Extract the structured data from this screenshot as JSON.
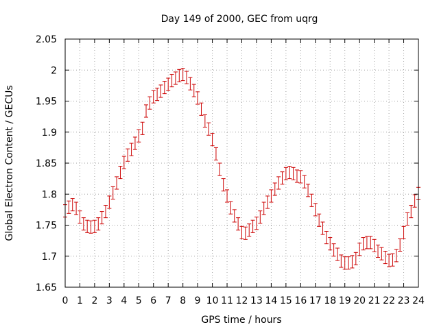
{
  "chart_data": {
    "type": "scatter",
    "title": "Day 149 of 2000, GEC from uqrg",
    "xlabel": "GPS time / hours",
    "ylabel": "Global Electron Content / GECUs",
    "xlim": [
      0,
      24
    ],
    "ylim": [
      1.65,
      2.05
    ],
    "xticks": [
      0,
      1,
      2,
      3,
      4,
      5,
      6,
      7,
      8,
      9,
      10,
      11,
      12,
      13,
      14,
      15,
      16,
      17,
      18,
      19,
      20,
      21,
      22,
      23,
      24
    ],
    "yticks": [
      1.65,
      1.7,
      1.75,
      1.8,
      1.85,
      1.9,
      1.95,
      2,
      2.05
    ],
    "ytick_labels": [
      "1.65",
      "1.7",
      "1.75",
      "1.8",
      "1.85",
      "1.9",
      "1.95",
      "2",
      "2.05"
    ],
    "grid": true,
    "marker": "errorbar",
    "series": [
      {
        "color": "#cc0000",
        "error": 0.01,
        "x": [
          0,
          0.25,
          0.5,
          0.75,
          1,
          1.25,
          1.5,
          1.75,
          2,
          2.25,
          2.5,
          2.75,
          3,
          3.25,
          3.5,
          3.75,
          4,
          4.25,
          4.5,
          4.75,
          5,
          5.25,
          5.5,
          5.75,
          6,
          6.25,
          6.5,
          6.75,
          7,
          7.25,
          7.5,
          7.75,
          8,
          8.25,
          8.5,
          8.75,
          9,
          9.25,
          9.5,
          9.75,
          10,
          10.25,
          10.5,
          10.75,
          11,
          11.25,
          11.5,
          11.75,
          12,
          12.25,
          12.5,
          12.75,
          13,
          13.25,
          13.5,
          13.75,
          14,
          14.25,
          14.5,
          14.75,
          15,
          15.25,
          15.5,
          15.75,
          16,
          16.25,
          16.5,
          16.75,
          17,
          17.25,
          17.5,
          17.75,
          18,
          18.25,
          18.5,
          18.75,
          19,
          19.25,
          19.5,
          19.75,
          20,
          20.25,
          20.5,
          20.75,
          21,
          21.25,
          21.5,
          21.75,
          22,
          22.25,
          22.5,
          22.75,
          23,
          23.25,
          23.5,
          23.75,
          24
        ],
        "y": [
          1.773,
          1.779,
          1.783,
          1.777,
          1.763,
          1.752,
          1.748,
          1.747,
          1.748,
          1.752,
          1.762,
          1.772,
          1.787,
          1.802,
          1.818,
          1.835,
          1.851,
          1.863,
          1.872,
          1.882,
          1.894,
          1.906,
          1.934,
          1.947,
          1.957,
          1.961,
          1.966,
          1.972,
          1.977,
          1.983,
          1.987,
          1.991,
          1.993,
          1.988,
          1.978,
          1.967,
          1.955,
          1.937,
          1.918,
          1.905,
          1.888,
          1.865,
          1.84,
          1.815,
          1.797,
          1.778,
          1.765,
          1.752,
          1.738,
          1.737,
          1.742,
          1.748,
          1.753,
          1.763,
          1.777,
          1.787,
          1.797,
          1.808,
          1.818,
          1.826,
          1.833,
          1.835,
          1.833,
          1.829,
          1.828,
          1.82,
          1.806,
          1.79,
          1.775,
          1.758,
          1.745,
          1.73,
          1.72,
          1.71,
          1.703,
          1.692,
          1.689,
          1.689,
          1.691,
          1.696,
          1.711,
          1.72,
          1.722,
          1.722,
          1.717,
          1.708,
          1.704,
          1.698,
          1.693,
          1.694,
          1.701,
          1.718,
          1.738,
          1.76,
          1.772,
          1.789,
          1.801
        ]
      }
    ]
  }
}
